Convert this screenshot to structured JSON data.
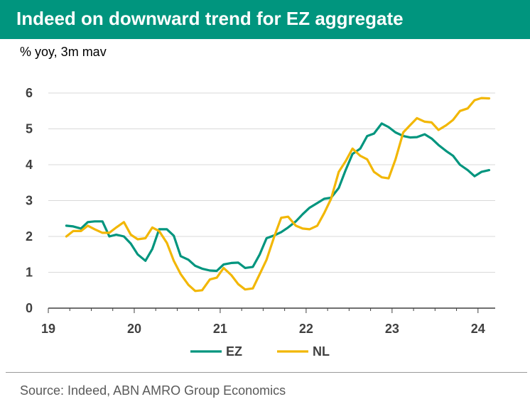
{
  "header": {
    "title": "Indeed on downward trend for EZ aggregate"
  },
  "footer": {
    "source": "Source: Indeed, ABN AMRO Group Economics"
  },
  "chart_data": {
    "type": "line",
    "title": "Indeed on downward trend for EZ aggregate",
    "subtitle": "% yoy, 3m mav",
    "xlabel": "",
    "ylabel": "",
    "xlim": [
      19,
      24.2
    ],
    "ylim": [
      0,
      6
    ],
    "x_ticks": [
      19,
      20,
      21,
      22,
      23,
      24
    ],
    "x_tick_labels": [
      "19",
      "20",
      "21",
      "22",
      "23",
      "24"
    ],
    "y_ticks": [
      0,
      1,
      2,
      3,
      4,
      5,
      6
    ],
    "y_tick_labels": [
      "0",
      "1",
      "2",
      "3",
      "4",
      "5",
      "6"
    ],
    "grid": "horizontal",
    "legend": "bottom-center",
    "series": [
      {
        "name": "EZ",
        "color": "#00957e",
        "x": [
          19.21,
          19.29,
          19.38,
          19.46,
          19.54,
          19.63,
          19.71,
          19.79,
          19.88,
          19.96,
          20.04,
          20.13,
          20.21,
          20.29,
          20.38,
          20.46,
          20.54,
          20.63,
          20.71,
          20.79,
          20.88,
          20.96,
          21.04,
          21.13,
          21.21,
          21.29,
          21.38,
          21.46,
          21.54,
          21.63,
          21.71,
          21.79,
          21.88,
          21.96,
          22.04,
          22.13,
          22.21,
          22.29,
          22.38,
          22.46,
          22.54,
          22.63,
          22.71,
          22.79,
          22.88,
          22.96,
          23.04,
          23.13,
          23.21,
          23.29,
          23.38,
          23.46,
          23.54,
          23.63,
          23.71,
          23.79,
          23.88,
          23.96,
          24.04,
          24.13
        ],
        "values": [
          2.3,
          2.28,
          2.22,
          2.4,
          2.42,
          2.42,
          2.0,
          2.05,
          2.0,
          1.8,
          1.5,
          1.32,
          1.65,
          2.2,
          2.2,
          2.02,
          1.45,
          1.35,
          1.18,
          1.1,
          1.05,
          1.04,
          1.22,
          1.26,
          1.27,
          1.12,
          1.15,
          1.5,
          1.95,
          2.03,
          2.12,
          2.25,
          2.42,
          2.62,
          2.8,
          2.93,
          3.05,
          3.08,
          3.35,
          3.85,
          4.3,
          4.45,
          4.8,
          4.87,
          5.15,
          5.05,
          4.9,
          4.8,
          4.76,
          4.77,
          4.85,
          4.73,
          4.55,
          4.38,
          4.25,
          4.0,
          3.85,
          3.68,
          3.8,
          3.85
        ]
      },
      {
        "name": "NL",
        "color": "#f2b705",
        "x": [
          19.21,
          19.29,
          19.38,
          19.46,
          19.54,
          19.63,
          19.71,
          19.79,
          19.88,
          19.96,
          20.04,
          20.13,
          20.21,
          20.29,
          20.38,
          20.46,
          20.54,
          20.63,
          20.71,
          20.79,
          20.88,
          20.96,
          21.04,
          21.13,
          21.21,
          21.29,
          21.38,
          21.46,
          21.54,
          21.63,
          21.71,
          21.79,
          21.88,
          21.96,
          22.04,
          22.13,
          22.21,
          22.29,
          22.38,
          22.46,
          22.54,
          22.63,
          22.71,
          22.79,
          22.88,
          22.96,
          23.04,
          23.13,
          23.21,
          23.29,
          23.38,
          23.46,
          23.54,
          23.63,
          23.71,
          23.79,
          23.88,
          23.96,
          24.04,
          24.13
        ],
        "values": [
          2.0,
          2.15,
          2.15,
          2.3,
          2.2,
          2.1,
          2.1,
          2.25,
          2.4,
          2.05,
          1.92,
          1.95,
          2.25,
          2.15,
          1.82,
          1.32,
          0.95,
          0.65,
          0.48,
          0.5,
          0.8,
          0.85,
          1.12,
          0.92,
          0.67,
          0.52,
          0.55,
          0.95,
          1.35,
          2.0,
          2.52,
          2.55,
          2.3,
          2.22,
          2.2,
          2.3,
          2.65,
          3.05,
          3.8,
          4.1,
          4.45,
          4.25,
          4.15,
          3.8,
          3.65,
          3.62,
          4.15,
          4.9,
          5.1,
          5.3,
          5.2,
          5.18,
          4.97,
          5.1,
          5.25,
          5.5,
          5.57,
          5.8,
          5.86,
          5.85
        ]
      }
    ]
  }
}
